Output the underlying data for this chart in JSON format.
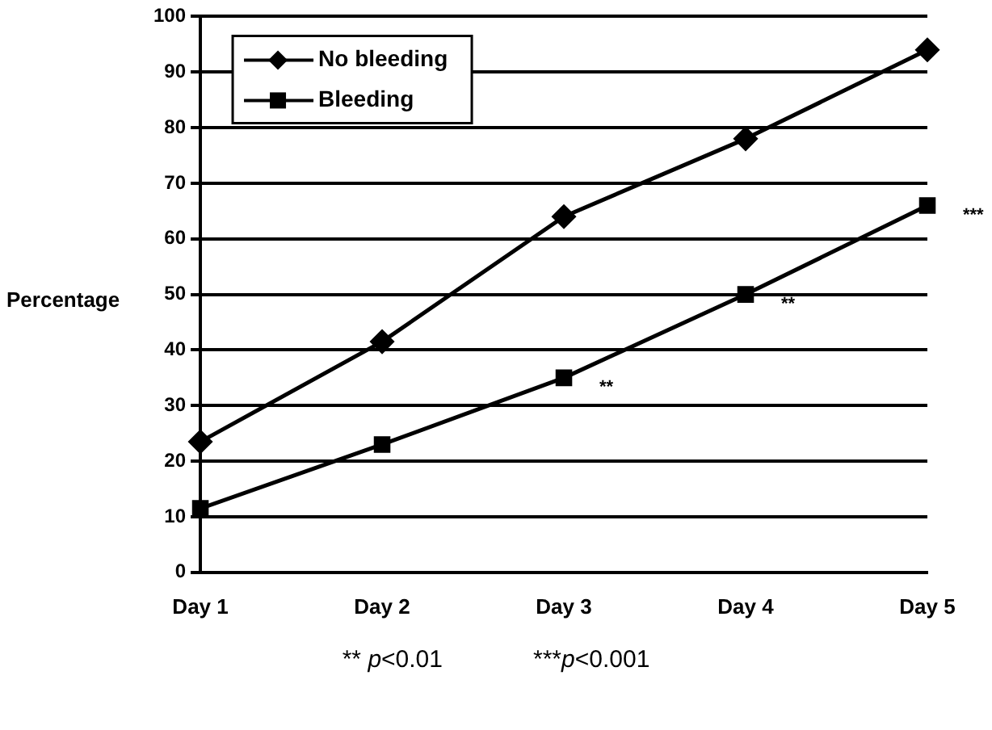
{
  "chart_data": {
    "type": "line",
    "ylabel": "Percentage",
    "categories": [
      "Day 1",
      "Day 2",
      "Day 3",
      "Day 4",
      "Day 5"
    ],
    "series": [
      {
        "name": "No bleeding",
        "color": "#000000",
        "marker": "diamond",
        "values": [
          23.5,
          41.5,
          64,
          78,
          94
        ]
      },
      {
        "name": "Bleeding",
        "color": "#000000",
        "marker": "square",
        "values": [
          11.5,
          23,
          35,
          50,
          66
        ]
      }
    ],
    "ylim": [
      0,
      100
    ],
    "yticks": [
      0,
      10,
      20,
      30,
      40,
      50,
      60,
      70,
      80,
      90,
      100
    ],
    "grid": "y",
    "legend": "top left",
    "line_style": "solid",
    "annotations": [
      {
        "text": "**",
        "x": "Day 3",
        "y": 35
      },
      {
        "text": "**",
        "x": "Day 4",
        "y": 50
      },
      {
        "text": "***",
        "x": "Day 5",
        "y": 66
      },
      "** p<0.01",
      "***p<0.001"
    ]
  }
}
